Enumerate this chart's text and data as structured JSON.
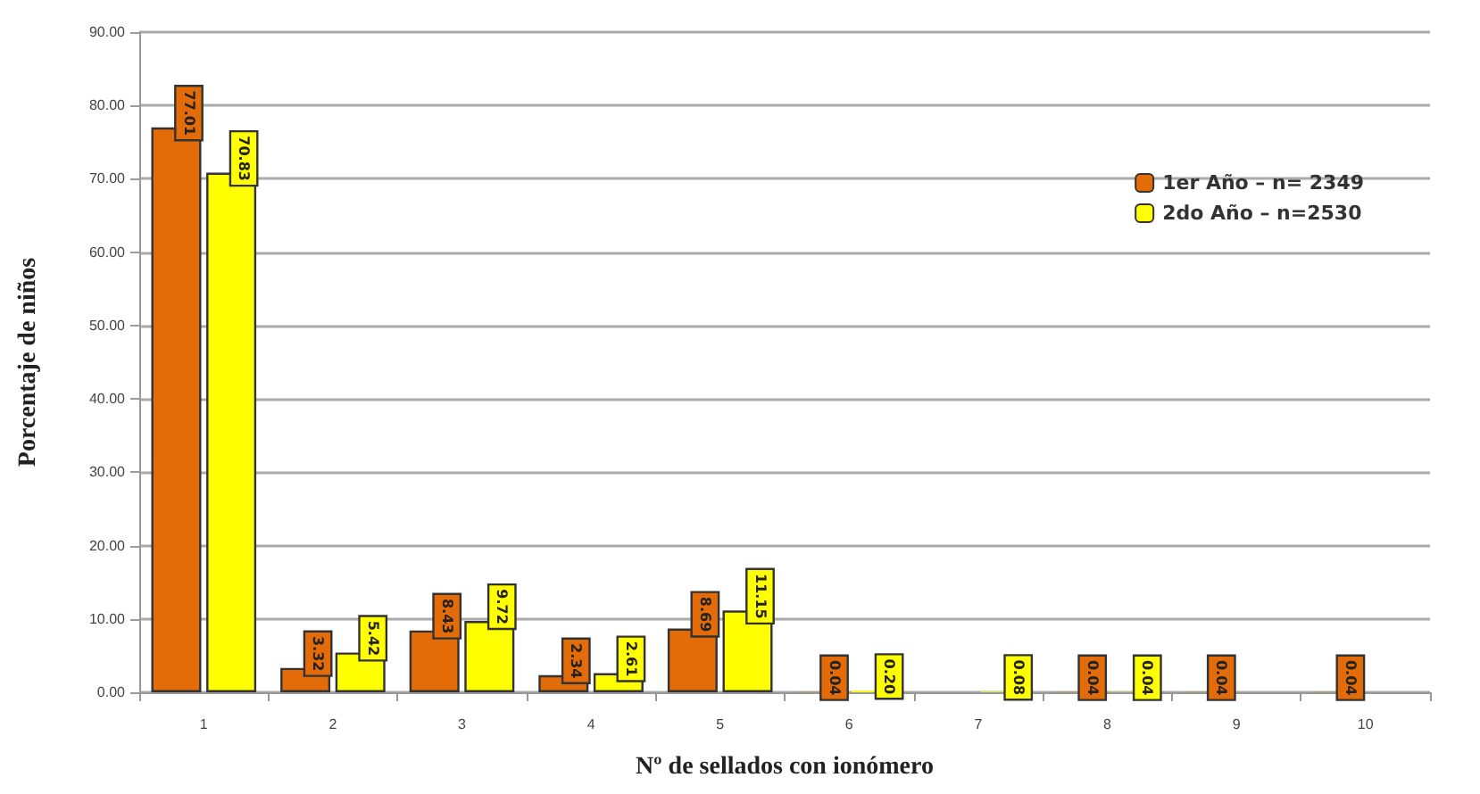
{
  "chart_data": {
    "type": "bar",
    "xlabel": "Nº de sellados con ionómero",
    "ylabel": "Porcentaje de niños",
    "categories": [
      "1",
      "2",
      "3",
      "4",
      "5",
      "6",
      "7",
      "8",
      "9",
      "10"
    ],
    "series": [
      {
        "name": "1er Año – n= 2349",
        "color": "#e36c09",
        "values": [
          77.01,
          3.32,
          8.43,
          2.34,
          8.69,
          0.04,
          null,
          0.04,
          0.04,
          0.04
        ],
        "value_labels": [
          "77.01",
          "3.32",
          "8.43",
          "2.34",
          "8.69",
          "0.04",
          null,
          "0.04",
          "0.04",
          "0.04"
        ]
      },
      {
        "name": "2do Año – n=2530",
        "color": "#ffff00",
        "values": [
          70.83,
          5.42,
          9.72,
          2.61,
          11.15,
          0.2,
          0.08,
          0.04,
          null,
          null
        ],
        "value_labels": [
          "70.83",
          "5.42",
          "9.72",
          "2.61",
          "11.15",
          "0.20",
          "0.08",
          "0.04",
          null,
          null
        ]
      }
    ],
    "ylim": [
      0,
      90
    ],
    "yticks": [
      {
        "value": 0,
        "label": "0.00"
      },
      {
        "value": 10,
        "label": "10.00"
      },
      {
        "value": 20,
        "label": "20.00"
      },
      {
        "value": 30,
        "label": "30.00"
      },
      {
        "value": 40,
        "label": "40.00"
      },
      {
        "value": 50,
        "label": "50.00"
      },
      {
        "value": 60,
        "label": "60.00"
      },
      {
        "value": 70,
        "label": "70.00"
      },
      {
        "value": 80,
        "label": "80.00"
      },
      {
        "value": 90,
        "label": "90.00"
      }
    ],
    "grid": "y",
    "legend": "top right"
  }
}
